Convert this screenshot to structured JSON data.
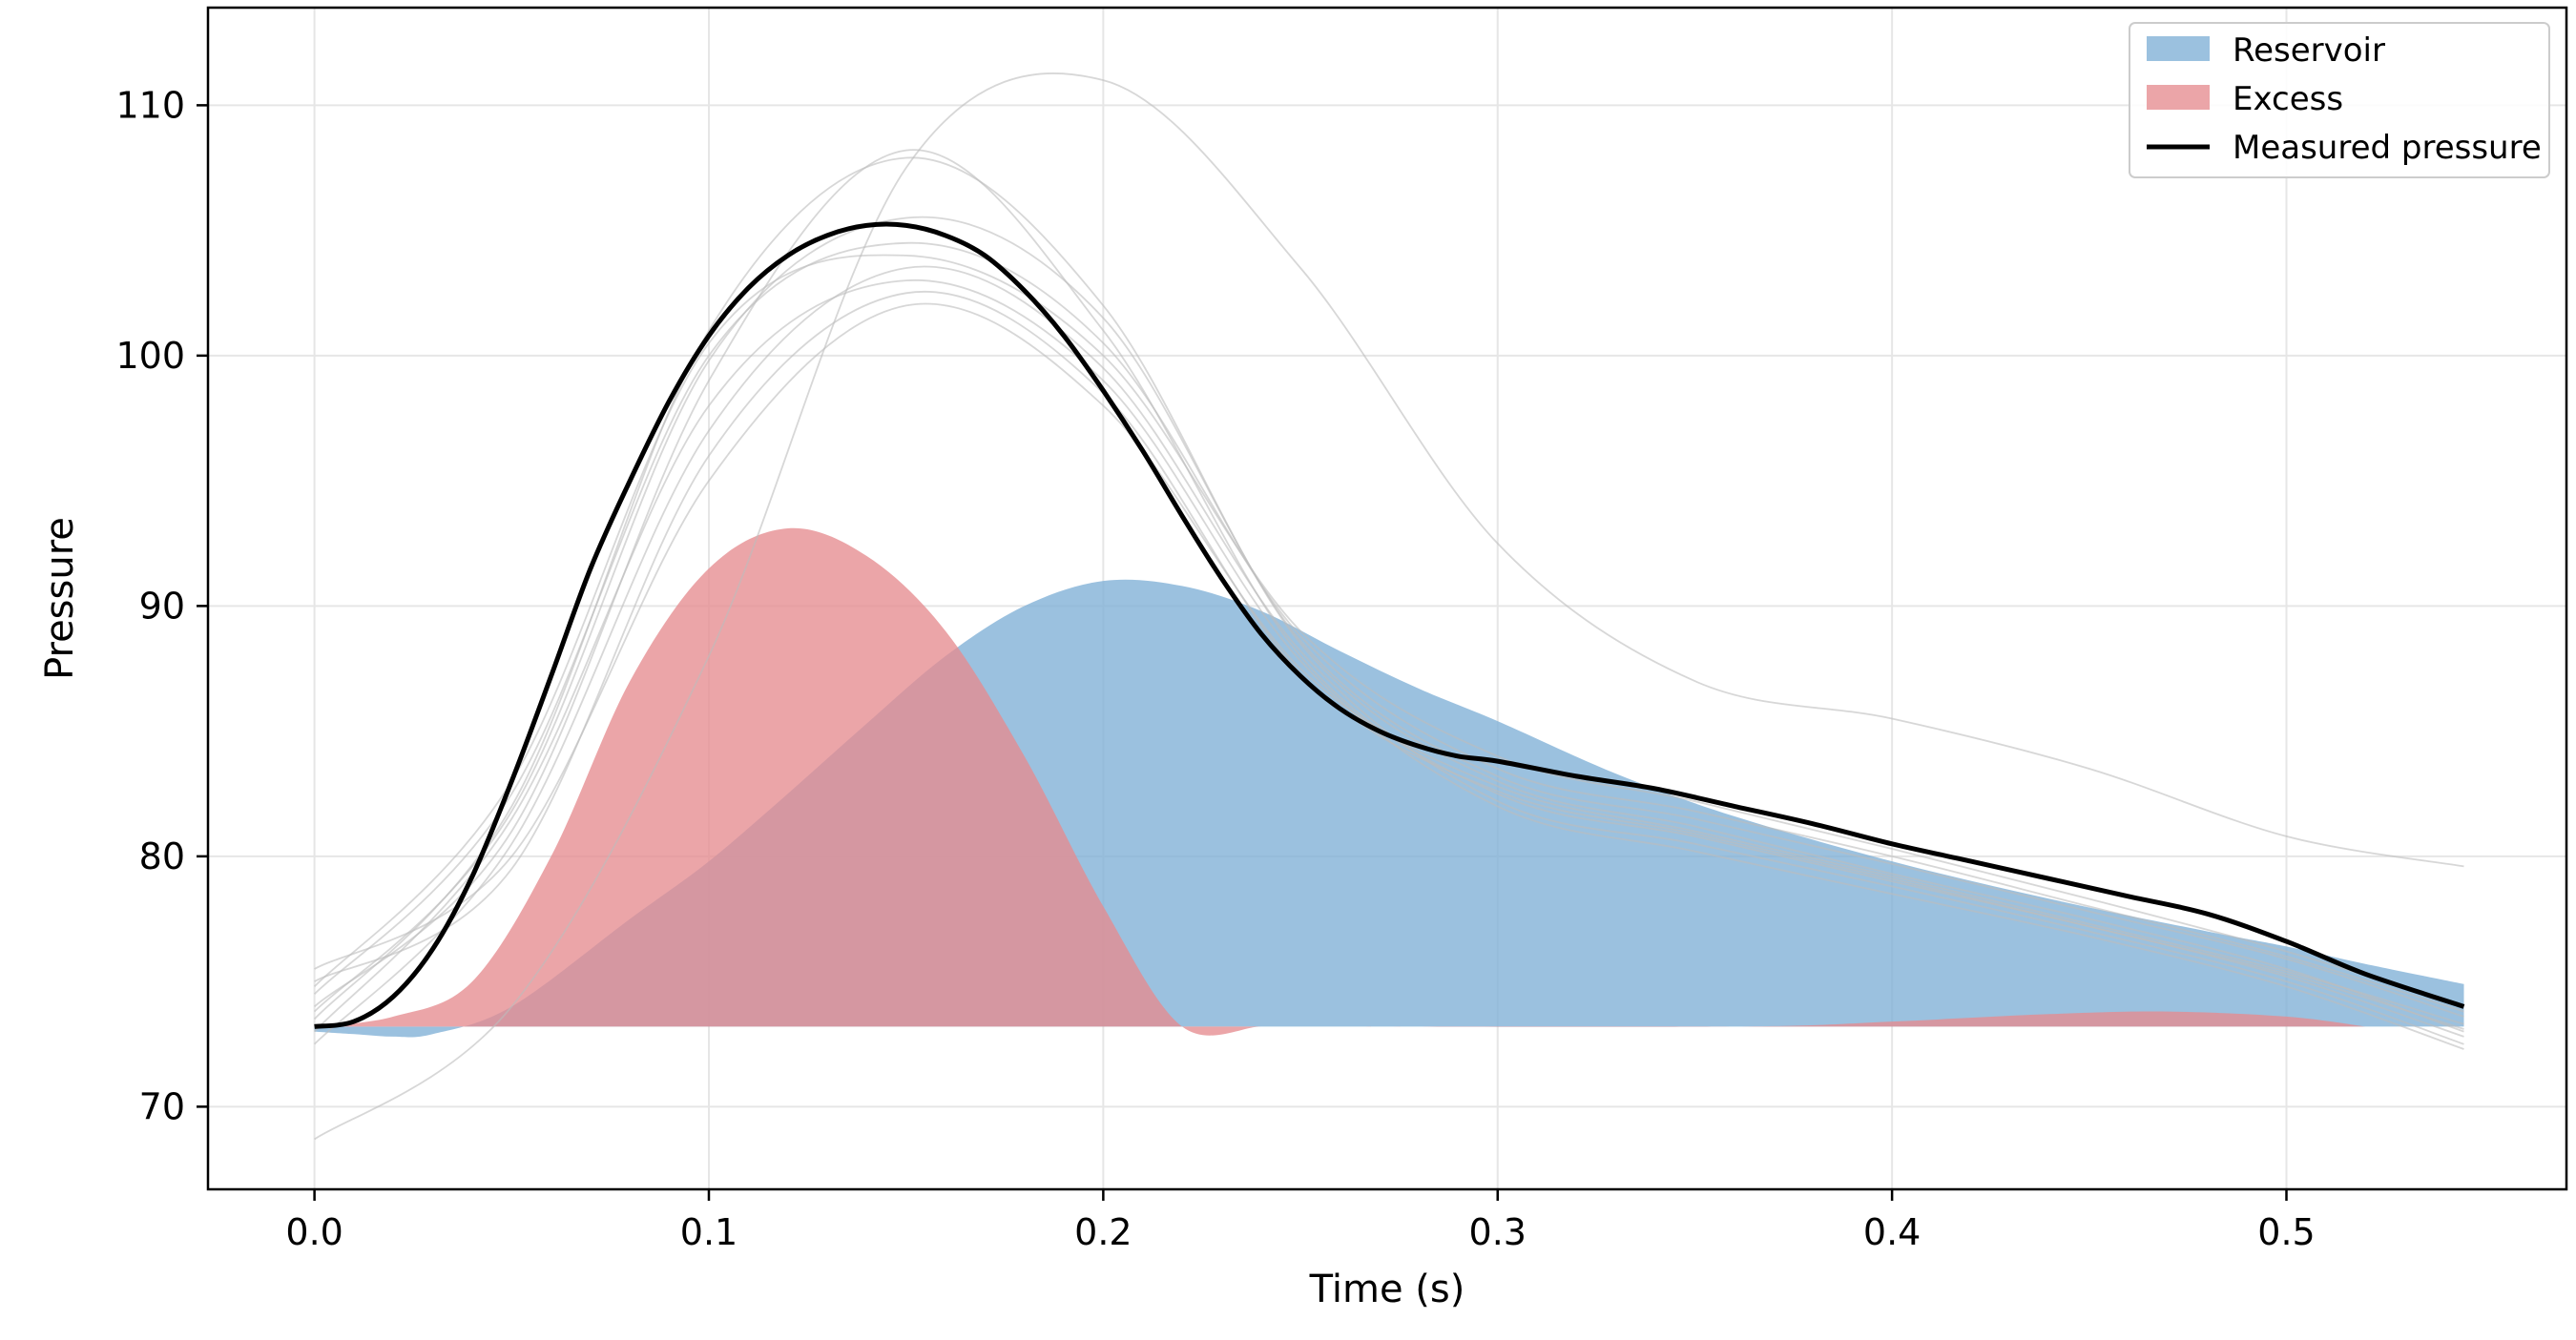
{
  "chart_data": {
    "type": "area",
    "title": "",
    "xlabel": "Time (s)",
    "ylabel": "Pressure",
    "xlim": [
      -0.027,
      0.571
    ],
    "ylim": [
      66.7,
      113.9
    ],
    "xticks": [
      0.0,
      0.1,
      0.2,
      0.3,
      0.4,
      0.5
    ],
    "xtick_labels": [
      "0.0",
      "0.1",
      "0.2",
      "0.3",
      "0.4",
      "0.5"
    ],
    "yticks": [
      70,
      80,
      90,
      100,
      110
    ],
    "ytick_labels": [
      "70",
      "80",
      "90",
      "100",
      "110"
    ],
    "grid": true,
    "legend_position": "top-right",
    "baseline": 73.2,
    "colors": {
      "reservoir": "#7fb0d6",
      "excess": "#e58c8f",
      "measured": "#000000",
      "beats": "#bdbdbd"
    },
    "series": [
      {
        "name": "Reservoir",
        "kind": "fill",
        "x": [
          0.0,
          0.01,
          0.02,
          0.03,
          0.05,
          0.08,
          0.1,
          0.12,
          0.14,
          0.16,
          0.18,
          0.2,
          0.22,
          0.24,
          0.26,
          0.28,
          0.3,
          0.33,
          0.36,
          0.4,
          0.44,
          0.48,
          0.5,
          0.52,
          0.545
        ],
        "y": [
          73.0,
          72.9,
          72.8,
          72.9,
          74.0,
          77.5,
          79.8,
          82.5,
          85.3,
          88.0,
          90.0,
          91.0,
          90.8,
          89.8,
          88.2,
          86.7,
          85.4,
          83.3,
          81.6,
          79.8,
          78.3,
          77.0,
          76.4,
          75.7,
          74.9
        ]
      },
      {
        "name": "Excess",
        "kind": "fill",
        "x": [
          0.0,
          0.02,
          0.04,
          0.06,
          0.08,
          0.1,
          0.12,
          0.14,
          0.16,
          0.18,
          0.2,
          0.22,
          0.24,
          0.25,
          0.36,
          0.4,
          0.44,
          0.47,
          0.5,
          0.52
        ],
        "y": [
          73.2,
          73.6,
          75.0,
          80.0,
          87.0,
          91.5,
          93.1,
          92.0,
          89.0,
          84.0,
          78.0,
          73.2,
          73.2,
          73.2,
          73.2,
          73.4,
          73.7,
          73.8,
          73.6,
          73.2
        ]
      },
      {
        "name": "Measured pressure",
        "kind": "line",
        "x": [
          0.0,
          0.01,
          0.02,
          0.03,
          0.04,
          0.05,
          0.06,
          0.07,
          0.08,
          0.09,
          0.1,
          0.11,
          0.12,
          0.13,
          0.14,
          0.15,
          0.16,
          0.17,
          0.18,
          0.19,
          0.2,
          0.21,
          0.22,
          0.23,
          0.24,
          0.25,
          0.26,
          0.27,
          0.28,
          0.29,
          0.3,
          0.32,
          0.34,
          0.36,
          0.38,
          0.4,
          0.42,
          0.44,
          0.46,
          0.48,
          0.5,
          0.52,
          0.545
        ],
        "y": [
          73.2,
          73.4,
          74.4,
          76.3,
          79.2,
          83.0,
          87.2,
          91.5,
          95.0,
          98.2,
          100.8,
          102.7,
          104.0,
          104.8,
          105.2,
          105.2,
          104.8,
          104.0,
          102.6,
          100.8,
          98.6,
          96.2,
          93.6,
          91.1,
          88.9,
          87.2,
          85.9,
          85.0,
          84.4,
          84.0,
          83.8,
          83.2,
          82.7,
          82.0,
          81.3,
          80.5,
          79.8,
          79.1,
          78.4,
          77.7,
          76.6,
          75.3,
          74.0
        ]
      }
    ],
    "beats": [
      {
        "x": [
          0.0,
          0.05,
          0.1,
          0.15,
          0.2,
          0.25,
          0.3,
          0.35,
          0.4,
          0.45,
          0.5,
          0.545
        ],
        "y": [
          73.5,
          82.0,
          101.0,
          107.9,
          102.0,
          88.5,
          83.0,
          81.2,
          79.3,
          77.5,
          75.5,
          73.0
        ]
      },
      {
        "x": [
          0.0,
          0.05,
          0.1,
          0.15,
          0.2,
          0.25,
          0.3,
          0.35,
          0.4,
          0.45,
          0.5,
          0.545
        ],
        "y": [
          74.0,
          81.0,
          99.0,
          108.2,
          101.0,
          88.0,
          82.5,
          80.8,
          79.0,
          77.2,
          75.2,
          72.8
        ]
      },
      {
        "x": [
          0.0,
          0.05,
          0.1,
          0.15,
          0.2,
          0.25,
          0.3,
          0.35,
          0.4,
          0.45,
          0.5,
          0.545
        ],
        "y": [
          75.5,
          80.0,
          95.0,
          102.0,
          98.0,
          87.5,
          82.8,
          81.0,
          79.2,
          77.3,
          75.4,
          73.3
        ]
      },
      {
        "x": [
          0.0,
          0.05,
          0.1,
          0.15,
          0.2,
          0.25,
          0.3,
          0.35,
          0.4,
          0.45,
          0.5,
          0.545
        ],
        "y": [
          72.5,
          80.5,
          97.0,
          103.5,
          99.5,
          88.2,
          82.2,
          80.5,
          78.8,
          77.0,
          75.0,
          72.5
        ]
      },
      {
        "x": [
          0.0,
          0.05,
          0.1,
          0.15,
          0.2,
          0.25,
          0.3,
          0.35,
          0.4,
          0.45,
          0.5,
          0.545
        ],
        "y": [
          74.5,
          82.5,
          100.0,
          104.5,
          100.5,
          88.8,
          83.5,
          81.8,
          80.0,
          78.0,
          76.0,
          73.8
        ]
      },
      {
        "x": [
          0.0,
          0.05,
          0.1,
          0.15,
          0.2,
          0.25,
          0.3,
          0.35,
          0.4,
          0.45,
          0.5,
          0.545
        ],
        "y": [
          73.0,
          81.5,
          98.0,
          103.0,
          99.0,
          87.8,
          82.0,
          80.2,
          78.5,
          76.8,
          74.8,
          72.3
        ]
      },
      {
        "x": [
          0.0,
          0.05,
          0.1,
          0.15,
          0.2,
          0.25,
          0.3,
          0.35,
          0.4,
          0.45,
          0.5,
          0.545
        ],
        "y": [
          74.8,
          83.0,
          100.5,
          104.0,
          100.0,
          89.0,
          84.0,
          82.2,
          80.3,
          78.3,
          76.2,
          74.0
        ]
      },
      {
        "x": [
          0.0,
          0.05,
          0.1,
          0.15,
          0.2,
          0.25,
          0.3,
          0.35,
          0.4,
          0.45,
          0.5,
          0.545
        ],
        "y": [
          75.0,
          79.5,
          96.0,
          102.5,
          98.5,
          87.3,
          82.6,
          80.9,
          79.1,
          77.2,
          75.3,
          73.1
        ]
      },
      {
        "x": [
          0.0,
          0.05,
          0.1,
          0.15,
          0.2,
          0.25,
          0.3,
          0.35,
          0.4,
          0.45,
          0.5,
          0.545
        ],
        "y": [
          68.7,
          74.0,
          88.0,
          107.5,
          111.0,
          103.5,
          92.5,
          87.0,
          85.5,
          83.5,
          80.8,
          79.6
        ]
      },
      {
        "x": [
          0.0,
          0.05,
          0.1,
          0.15,
          0.2,
          0.25,
          0.3,
          0.35,
          0.4,
          0.45,
          0.5,
          0.545
        ],
        "y": [
          73.8,
          81.8,
          99.8,
          105.5,
          101.5,
          88.6,
          83.2,
          81.5,
          79.7,
          77.8,
          75.9,
          73.6
        ]
      }
    ]
  }
}
